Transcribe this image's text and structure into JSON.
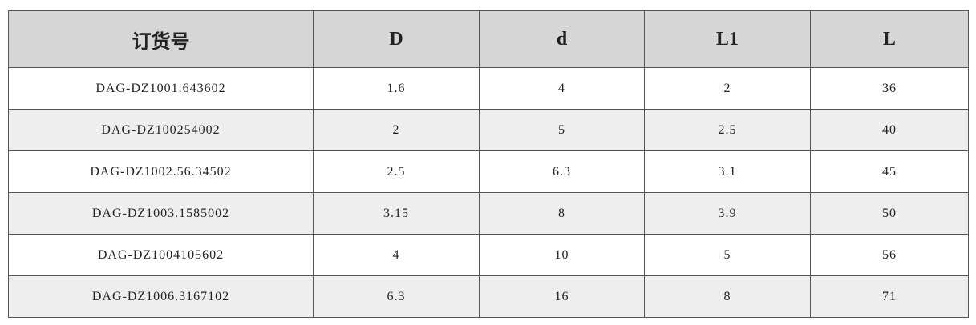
{
  "table": {
    "header": [
      "订货号",
      "D",
      "d",
      "L1",
      "L"
    ],
    "rows": [
      [
        "DAG-DZ1001.643602",
        "1.6",
        "4",
        "2",
        "36"
      ],
      [
        "DAG-DZ100254002",
        "2",
        "5",
        "2.5",
        "40"
      ],
      [
        "DAG-DZ1002.56.34502",
        "2.5",
        "6.3",
        "3.1",
        "45"
      ],
      [
        "DAG-DZ1003.1585002",
        "3.15",
        "8",
        "3.9",
        "50"
      ],
      [
        "DAG-DZ1004105602",
        "4",
        "10",
        "5",
        "56"
      ],
      [
        "DAG-DZ1006.3167102",
        "6.3",
        "16",
        "8",
        "71"
      ]
    ]
  }
}
